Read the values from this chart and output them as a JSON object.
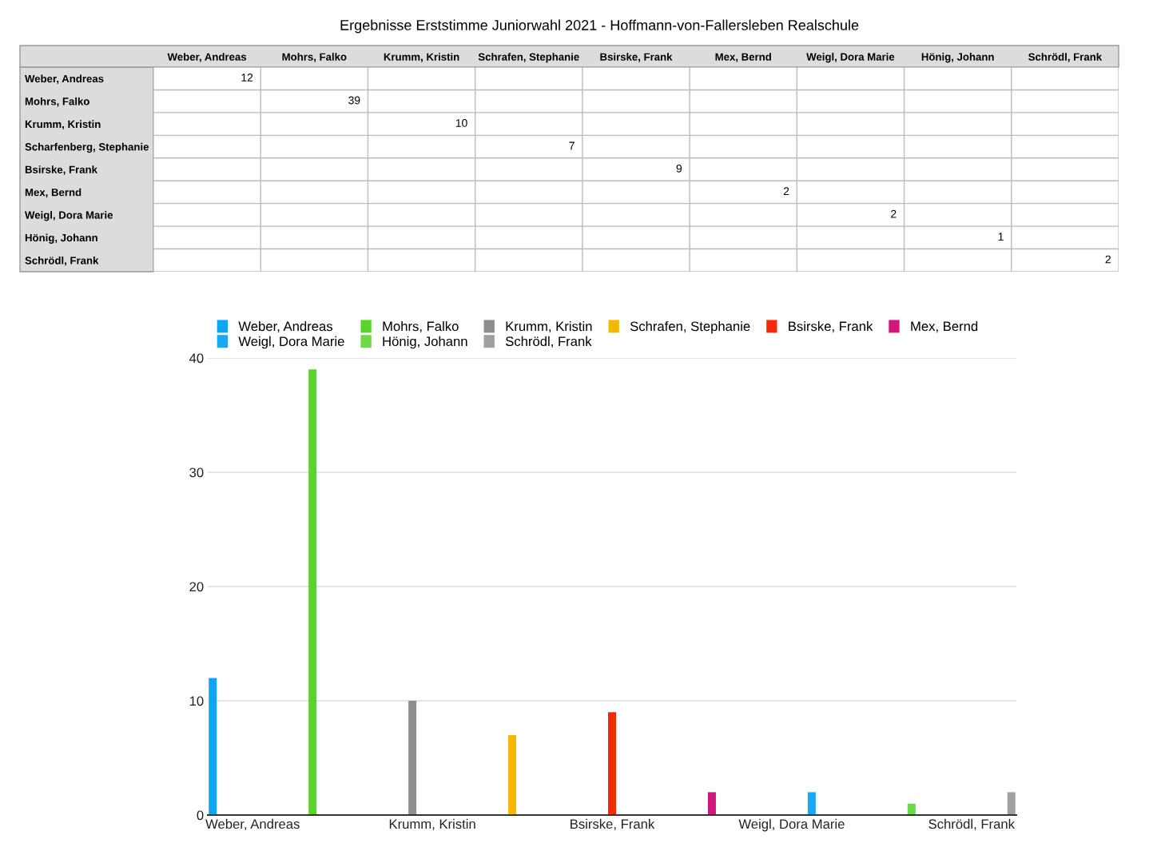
{
  "chart_data": [
    {
      "type": "heatmap",
      "title": "Ergebnisse Erststimme Juniorwahl 2021 - Hoffmann-von-Fallersleben Realschule",
      "categories": [
        "Weber, Andreas",
        "Mohrs, Falko",
        "Krumm, Kristin",
        "Schrafen, Stephanie",
        "Bsirske, Frank",
        "Mex, Bernd",
        "Weigl, Dora Marie",
        "Hönig, Johann",
        "Schrödl, Frank"
      ],
      "y_categories": [
        "Weber, Andreas",
        "Mohrs, Falko",
        "Krumm, Kristin",
        "Scharfenberg, Stephanie",
        "Bsirske, Frank",
        "Mex, Bernd",
        "Weigl, Dora Marie",
        "Hönig, Johann",
        "Schrödl, Frank"
      ],
      "cells": [
        [
          12,
          null,
          null,
          null,
          null,
          null,
          null,
          null,
          null
        ],
        [
          null,
          39,
          null,
          null,
          null,
          null,
          null,
          null,
          null
        ],
        [
          null,
          null,
          10,
          null,
          null,
          null,
          null,
          null,
          null
        ],
        [
          null,
          null,
          null,
          7,
          null,
          null,
          null,
          null,
          null
        ],
        [
          null,
          null,
          null,
          null,
          9,
          null,
          null,
          null,
          null
        ],
        [
          null,
          null,
          null,
          null,
          null,
          2,
          null,
          null,
          null
        ],
        [
          null,
          null,
          null,
          null,
          null,
          null,
          2,
          null,
          null
        ],
        [
          null,
          null,
          null,
          null,
          null,
          null,
          null,
          1,
          null
        ],
        [
          null,
          null,
          null,
          null,
          null,
          null,
          null,
          null,
          2
        ]
      ],
      "data_labels": true
    },
    {
      "type": "bar",
      "categories": [
        "Weber, Andreas",
        null,
        "Krumm, Kristin",
        null,
        "Bsirske, Frank",
        null,
        "Weigl, Dora Marie",
        null,
        "Schrödl, Frank"
      ],
      "series": [
        {
          "name": "Weber, Andreas",
          "color": "#0ea5f5",
          "values": [
            12,
            null,
            null,
            null,
            null,
            null,
            null,
            null,
            null
          ]
        },
        {
          "name": "Mohrs, Falko",
          "color": "#5ad32b",
          "values": [
            null,
            39,
            null,
            null,
            null,
            null,
            null,
            null,
            null
          ]
        },
        {
          "name": "Krumm, Kristin",
          "color": "#8e8e8e",
          "values": [
            null,
            null,
            10,
            null,
            null,
            null,
            null,
            null,
            null
          ]
        },
        {
          "name": "Schrafen, Stephanie",
          "color": "#f5b800",
          "values": [
            null,
            null,
            null,
            7,
            null,
            null,
            null,
            null,
            null
          ]
        },
        {
          "name": "Bsirske, Frank",
          "color": "#f52a0a",
          "values": [
            null,
            null,
            null,
            null,
            9,
            null,
            null,
            null,
            null
          ]
        },
        {
          "name": "Mex, Bernd",
          "color": "#d1177a",
          "values": [
            null,
            null,
            null,
            null,
            null,
            2,
            null,
            null,
            null
          ]
        },
        {
          "name": "Weigl, Dora Marie",
          "color": "#1aa7f5",
          "values": [
            null,
            null,
            null,
            null,
            null,
            null,
            2,
            null,
            null
          ]
        },
        {
          "name": "Hönig, Johann",
          "color": "#6cd84a",
          "values": [
            null,
            null,
            null,
            null,
            null,
            null,
            null,
            1,
            null
          ]
        },
        {
          "name": "Schrödl, Frank",
          "color": "#a0a0a0",
          "values": [
            null,
            null,
            null,
            null,
            null,
            null,
            null,
            null,
            2
          ]
        }
      ],
      "ylim": [
        0,
        40
      ],
      "yticks": [
        0,
        10,
        20,
        30,
        40
      ],
      "grid": "y",
      "legend": "top"
    }
  ]
}
